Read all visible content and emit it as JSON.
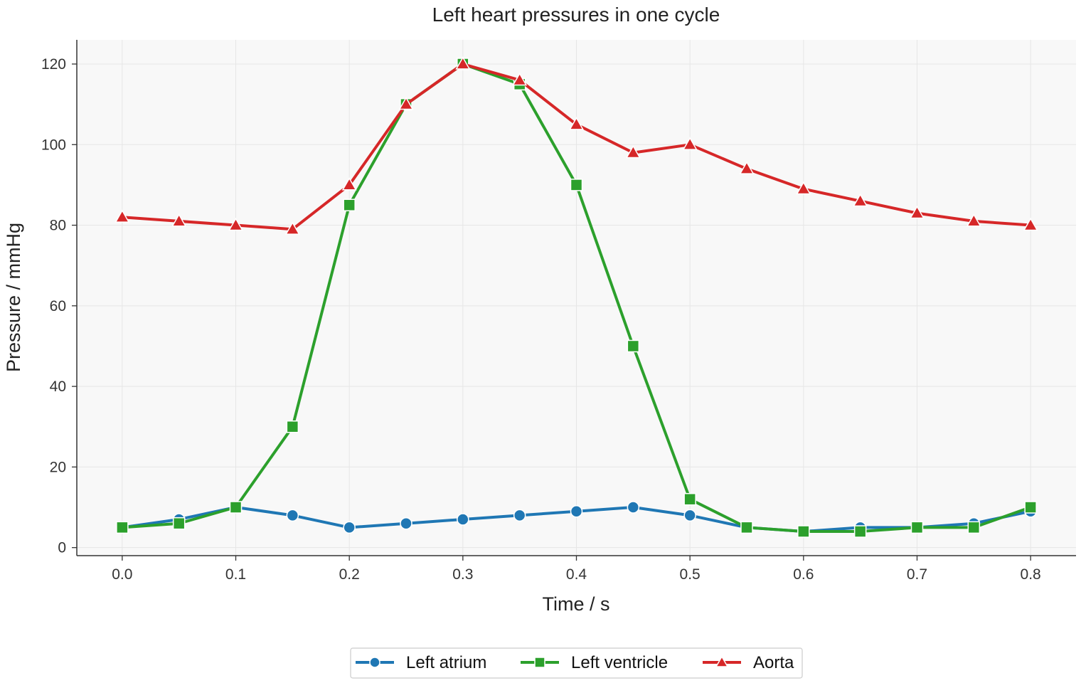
{
  "chart_data": {
    "type": "line",
    "title": "Left heart pressures in one cycle",
    "xlabel": "Time / s",
    "ylabel": "Pressure / mmHg",
    "xlim": [
      -0.04,
      0.84
    ],
    "ylim": [
      -2,
      126
    ],
    "x": [
      0.0,
      0.05,
      0.1,
      0.15,
      0.2,
      0.25,
      0.3,
      0.35,
      0.4,
      0.45,
      0.5,
      0.55,
      0.6,
      0.65,
      0.7,
      0.75,
      0.8
    ],
    "x_ticks": [
      "0.0",
      "0.1",
      "0.2",
      "0.3",
      "0.4",
      "0.5",
      "0.6",
      "0.7",
      "0.8"
    ],
    "y_ticks": [
      "0",
      "20",
      "40",
      "60",
      "80",
      "100",
      "120"
    ],
    "grid": true,
    "legend_position": "bottom-center",
    "series": [
      {
        "name": "Left atrium",
        "color": "#1f77b4",
        "marker": "circle",
        "values": [
          5,
          7,
          10,
          8,
          5,
          6,
          7,
          8,
          9,
          10,
          8,
          5,
          4,
          5,
          5,
          6,
          9
        ]
      },
      {
        "name": "Left ventricle",
        "color": "#2ca02c",
        "marker": "square",
        "values": [
          5,
          6,
          10,
          30,
          85,
          110,
          120,
          115,
          90,
          50,
          12,
          5,
          4,
          4,
          5,
          5,
          10
        ]
      },
      {
        "name": "Aorta",
        "color": "#d62728",
        "marker": "triangle",
        "values": [
          82,
          81,
          80,
          79,
          90,
          110,
          120,
          116,
          105,
          98,
          100,
          94,
          89,
          86,
          83,
          81,
          80
        ]
      }
    ]
  }
}
